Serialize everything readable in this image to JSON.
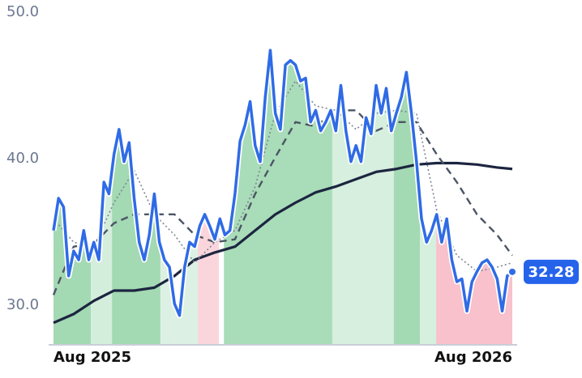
{
  "chart_data": {
    "type": "line",
    "xlim": [
      0,
      91
    ],
    "xticks": [
      {
        "value": 0,
        "label": "Aug 2025"
      },
      {
        "value": 91,
        "label": "Aug 2026"
      }
    ],
    "ylim": [
      27.3,
      50
    ],
    "yticks": [
      {
        "value": 30,
        "label": "30.0"
      },
      {
        "value": 40,
        "label": "40.0"
      },
      {
        "value": 50,
        "label": "50.0"
      }
    ],
    "grid": false,
    "bands": [
      {
        "start": 0,
        "end": 7.4,
        "color": "#a3d9b3"
      },
      {
        "start": 7.4,
        "end": 11.6,
        "color": "#d4eedc"
      },
      {
        "start": 11.6,
        "end": 21.2,
        "color": "#a3d9b3"
      },
      {
        "start": 21.2,
        "end": 28.6,
        "color": "#dcf1e3"
      },
      {
        "start": 28.6,
        "end": 32.8,
        "color": "#fad6dc"
      },
      {
        "start": 33.8,
        "end": 55.3,
        "color": "#a9dcb8"
      },
      {
        "start": 55.3,
        "end": 67.5,
        "color": "#d6efde"
      },
      {
        "start": 67.5,
        "end": 72.7,
        "color": "#a3d9b3"
      },
      {
        "start": 72.7,
        "end": 75.9,
        "color": "#d6efde"
      },
      {
        "start": 75.9,
        "end": 91,
        "color": "#f8c1cb"
      }
    ],
    "series": [
      {
        "color": "#2f6be6",
        "style": "solid",
        "area": true,
        "x": [
          0,
          1,
          2,
          3,
          4,
          5,
          6,
          7,
          8,
          9,
          10,
          11,
          12,
          13,
          14,
          15,
          16,
          17,
          18,
          19,
          20,
          21,
          22,
          23,
          24,
          25,
          26,
          27,
          28,
          29,
          30,
          31,
          32,
          33,
          34,
          35,
          36,
          37,
          38,
          39,
          40,
          41,
          42,
          43,
          44,
          45,
          46,
          47,
          48,
          49,
          50,
          51,
          52,
          53,
          54,
          55,
          56,
          57,
          58,
          59,
          60,
          61,
          62,
          63,
          64,
          65,
          66,
          67,
          68,
          69,
          70,
          71,
          72,
          73,
          74,
          75,
          76,
          77,
          78,
          79,
          80,
          81,
          82,
          83,
          84,
          85,
          86,
          87,
          88,
          89,
          90,
          91
        ],
        "values": [
          35.1,
          37.3,
          36.7,
          32,
          33.7,
          33.1,
          35.1,
          33.1,
          34.3,
          33.1,
          38.4,
          37.6,
          40.3,
          42,
          39.8,
          41.1,
          37.3,
          34.3,
          33.1,
          34.8,
          37.6,
          34.3,
          33.1,
          32.6,
          30.1,
          29.3,
          32.6,
          34.3,
          34,
          35.4,
          36.2,
          35.4,
          34.5,
          35.9,
          34.8,
          35.1,
          37.6,
          41.2,
          42.3,
          43.9,
          40.9,
          39.8,
          44.2,
          47.4,
          43.1,
          42,
          46.4,
          46.7,
          46.4,
          45.3,
          45.5,
          42.5,
          43.3,
          41.9,
          42.5,
          43.3,
          41.9,
          45,
          41.9,
          39.8,
          40.9,
          39.8,
          42.8,
          41.7,
          45,
          43.1,
          44.8,
          41.9,
          43.1,
          44.2,
          45.9,
          43.1,
          39.8,
          35.9,
          34.3,
          35.1,
          36.2,
          34.3,
          35.9,
          33.1,
          31.6,
          31.8,
          29.6,
          31.6,
          32.3,
          32.9,
          33.1,
          32.6,
          31.8,
          29.6,
          32,
          32.28
        ]
      },
      {
        "color": "#7d8594",
        "style": "dotted",
        "x": [
          0,
          4,
          8,
          12,
          16,
          20,
          24,
          28,
          32,
          36,
          40,
          44,
          48,
          52,
          56,
          60,
          64,
          68,
          72,
          76,
          80,
          84,
          88,
          91
        ],
        "values": [
          35.9,
          34.3,
          34,
          37,
          39.2,
          36.2,
          34.8,
          32.9,
          34.3,
          35.1,
          38.1,
          43.1,
          45.3,
          43.6,
          43.3,
          42,
          43.1,
          43.3,
          43.1,
          36.5,
          33.4,
          32.3,
          32.6,
          32.9
        ]
      },
      {
        "color": "#4b5565",
        "style": "dashed",
        "x": [
          0,
          4,
          8,
          12,
          16,
          20,
          24,
          28,
          32,
          36,
          40,
          44,
          48,
          52,
          56,
          60,
          64,
          68,
          72,
          76,
          80,
          84,
          88,
          91
        ],
        "values": [
          30.7,
          34,
          34.2,
          35.6,
          36.2,
          36.2,
          36.2,
          34.8,
          34.3,
          34.5,
          37.6,
          40.1,
          42.5,
          42.2,
          43.3,
          43.3,
          41.9,
          42.5,
          42.5,
          40.3,
          38.4,
          36.2,
          34.8,
          33.4
        ]
      },
      {
        "color": "#1c2540",
        "style": "solid",
        "x": [
          0,
          4,
          8,
          12,
          16,
          20,
          24,
          28,
          32,
          36,
          40,
          44,
          48,
          52,
          56,
          60,
          64,
          68,
          72,
          76,
          80,
          84,
          88,
          91
        ],
        "values": [
          28.8,
          29.4,
          30.3,
          31,
          31,
          31.2,
          32,
          33.1,
          33.6,
          34,
          35.1,
          36.2,
          37,
          37.7,
          38.1,
          38.6,
          39.1,
          39.3,
          39.6,
          39.7,
          39.7,
          39.6,
          39.4,
          39.3
        ]
      }
    ]
  }
}
